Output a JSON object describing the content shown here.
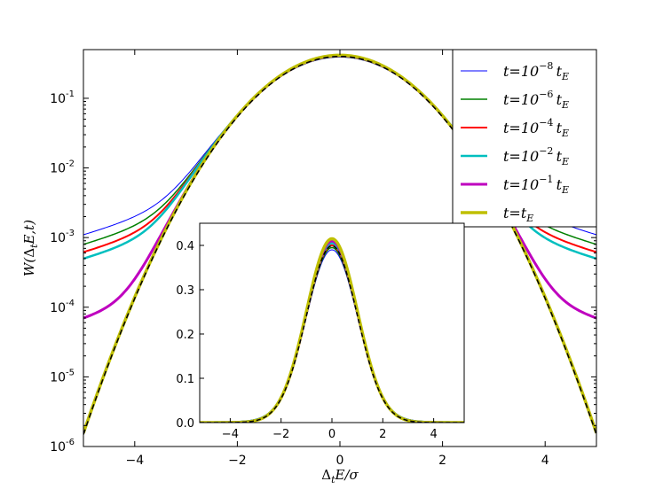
{
  "chart_data": [
    {
      "type": "line",
      "id": "main",
      "yscale": "log",
      "xlabel": "Δ_t E/σ",
      "ylabel": "W(Δ_t E,t)",
      "xlim": [
        -5,
        5
      ],
      "ylim": [
        1e-06,
        0.5
      ],
      "xticks": [
        -4,
        -2,
        0,
        2,
        4
      ],
      "xtick_labels": [
        "−4",
        "−2",
        "0",
        "2",
        "4"
      ],
      "yticks": [
        1e-06,
        1e-05,
        0.0001,
        0.001,
        0.01,
        0.1
      ],
      "ytick_labels": [
        {
          "base": "10",
          "exp": "-6"
        },
        {
          "base": "10",
          "exp": "-5"
        },
        {
          "base": "10",
          "exp": "-4"
        },
        {
          "base": "10",
          "exp": "-3"
        },
        {
          "base": "10",
          "exp": "-2"
        },
        {
          "base": "10",
          "exp": "-1"
        }
      ],
      "reference": {
        "name": "Gaussian",
        "style": "dashed",
        "color": "#000000",
        "sigma": 1.0,
        "mean": 0
      },
      "series": [
        {
          "name": "t=10^{-8} t_E",
          "color": "#0000ff",
          "width": 1,
          "tail_at_5": 0.0011,
          "peak": 0.39
        },
        {
          "name": "t=10^{-6} t_E",
          "color": "#008000",
          "width": 1.5,
          "tail_at_5": 0.0008,
          "peak": 0.395
        },
        {
          "name": "t=10^{-4} t_E",
          "color": "#ff0000",
          "width": 2,
          "tail_at_5": 0.00062,
          "peak": 0.4
        },
        {
          "name": "t=10^{-2} t_E",
          "color": "#00bfbf",
          "width": 2.5,
          "tail_at_5": 0.0005,
          "peak": 0.405
        },
        {
          "name": "t=10^{-1} t_E",
          "color": "#bf00bf",
          "width": 3,
          "tail_at_5": 7e-05,
          "peak": 0.41
        },
        {
          "name": "t=t_E",
          "color": "#bfbf00",
          "width": 3.5,
          "tail_at_5": 1.5e-06,
          "peak": 0.415
        }
      ],
      "legend": {
        "placement": "top-right",
        "entries": [
          {
            "pre": "t=10",
            "sup": "−8",
            "mid": "t",
            "sub": "E"
          },
          {
            "pre": "t=10",
            "sup": "−6",
            "mid": "t",
            "sub": "E"
          },
          {
            "pre": "t=10",
            "sup": "−4",
            "mid": "t",
            "sub": "E"
          },
          {
            "pre": "t=10",
            "sup": "−2",
            "mid": "t",
            "sub": "E"
          },
          {
            "pre": "t=10",
            "sup": "−1",
            "mid": "t",
            "sub": "E"
          },
          {
            "pre": "t=",
            "sup": "",
            "mid": "t",
            "sub": "E"
          }
        ]
      }
    },
    {
      "type": "line",
      "id": "inset",
      "yscale": "linear",
      "xlim": [
        -5.2,
        5.2
      ],
      "ylim": [
        0,
        0.45
      ],
      "xticks": [
        -4,
        -2,
        0,
        2,
        4
      ],
      "xtick_labels": [
        "−4",
        "−2",
        "0",
        "2",
        "4"
      ],
      "yticks": [
        0,
        0.1,
        0.2,
        0.3,
        0.4
      ],
      "ytick_labels": [
        "0.0",
        "0.1",
        "0.2",
        "0.3",
        "0.4"
      ],
      "note": "linear-scale inset of the same six distributions plus dashed Gaussian"
    }
  ]
}
